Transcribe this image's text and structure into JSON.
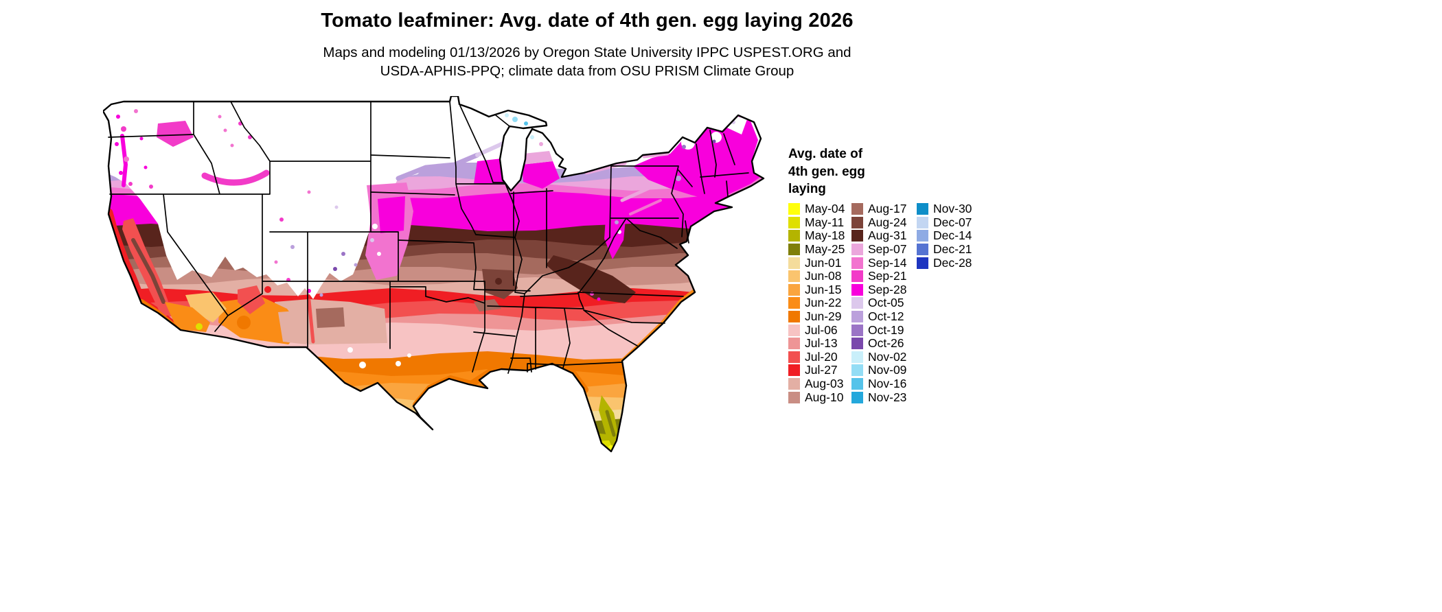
{
  "page": {
    "title": "Tomato leafminer: Avg. date of 4th gen. egg laying 2026",
    "subtitle_lines": [
      "Maps and modeling 01/13/2026 by Oregon State University IPPC USPEST.ORG and",
      "USDA-APHIS-PPQ; climate data from OSU PRISM Climate Group"
    ]
  },
  "legend": {
    "title_lines": [
      "Avg. date of",
      "4th gen. egg",
      "laying"
    ],
    "columns": [
      [
        {
          "label": "May-04",
          "color": "#FFFF0C"
        },
        {
          "label": "May-11",
          "color": "#DFDF00"
        },
        {
          "label": "May-18",
          "color": "#B4B400"
        },
        {
          "label": "May-25",
          "color": "#7F7F0A"
        },
        {
          "label": "Jun-01",
          "color": "#F4DC9C"
        },
        {
          "label": "Jun-08",
          "color": "#FAC46E"
        },
        {
          "label": "Jun-15",
          "color": "#FAA53F"
        },
        {
          "label": "Jun-22",
          "color": "#FA8C16"
        },
        {
          "label": "Jun-29",
          "color": "#F07800"
        },
        {
          "label": "Jul-06",
          "color": "#F7C3C3"
        },
        {
          "label": "Jul-13",
          "color": "#EE9596"
        },
        {
          "label": "Jul-20",
          "color": "#F25050"
        },
        {
          "label": "Jul-27",
          "color": "#F01E24"
        },
        {
          "label": "Aug-03",
          "color": "#E3AFA4"
        },
        {
          "label": "Aug-10",
          "color": "#C98E84"
        }
      ],
      [
        {
          "label": "Aug-17",
          "color": "#A56A5E"
        },
        {
          "label": "Aug-24",
          "color": "#7C4339"
        },
        {
          "label": "Aug-31",
          "color": "#58241C"
        },
        {
          "label": "Sep-07",
          "color": "#EBA6DC"
        },
        {
          "label": "Sep-14",
          "color": "#F273CF"
        },
        {
          "label": "Sep-21",
          "color": "#F23BC8"
        },
        {
          "label": "Sep-28",
          "color": "#F800DC"
        },
        {
          "label": "Oct-05",
          "color": "#DCC8EC"
        },
        {
          "label": "Oct-12",
          "color": "#BBA0DC"
        },
        {
          "label": "Oct-19",
          "color": "#9B74C6"
        },
        {
          "label": "Oct-26",
          "color": "#7A48AC"
        },
        {
          "label": "Nov-02",
          "color": "#C9EFFA"
        },
        {
          "label": "Nov-09",
          "color": "#93DDF5"
        },
        {
          "label": "Nov-16",
          "color": "#55C3EA"
        },
        {
          "label": "Nov-23",
          "color": "#24A8DC"
        }
      ],
      [
        {
          "label": "Nov-30",
          "color": "#0E8EC8"
        },
        {
          "label": "Dec-07",
          "color": "#C3D6F2"
        },
        {
          "label": "Dec-14",
          "color": "#8FABE4"
        },
        {
          "label": "Dec-21",
          "color": "#5573D2"
        },
        {
          "label": "Dec-28",
          "color": "#1E35C0"
        }
      ]
    ]
  },
  "map": {
    "region": "Contiguous United States",
    "variable": "Average date of 4th generation egg laying",
    "no_data_color": "#FFFFFF",
    "border_color": "#000000"
  },
  "chart_data": {
    "type": "heatmap",
    "subtype": "choropleth-map",
    "title": "Tomato leafminer: Avg. date of 4th gen. egg laying 2026",
    "region": "Contiguous United States",
    "scale_order": [
      "May-04",
      "May-11",
      "May-18",
      "May-25",
      "Jun-01",
      "Jun-08",
      "Jun-15",
      "Jun-22",
      "Jun-29",
      "Jul-06",
      "Jul-13",
      "Jul-20",
      "Jul-27",
      "Aug-03",
      "Aug-10",
      "Aug-17",
      "Aug-24",
      "Aug-31",
      "Sep-07",
      "Sep-14",
      "Sep-21",
      "Sep-28",
      "Oct-05",
      "Oct-12",
      "Oct-19",
      "Oct-26",
      "Nov-02",
      "Nov-09",
      "Nov-16",
      "Nov-23",
      "Nov-30",
      "Dec-07",
      "Dec-14",
      "Dec-21",
      "Dec-28"
    ],
    "legend_position": "right",
    "pattern": "Dates are earliest (May, yellow/olive) at the southern tips of Florida and Texas, progress through June oranges along the Gulf Coast, July pinks and reds across the mid-South, August browns across the central latitudes and Appalachians, September magentas across the upper Midwest and Northeast; white areas (northern tier and high-elevation Rockies/Great Basin) indicate no 4th generation, with scattered magenta/purple/cyan pockets in western valleys."
  }
}
